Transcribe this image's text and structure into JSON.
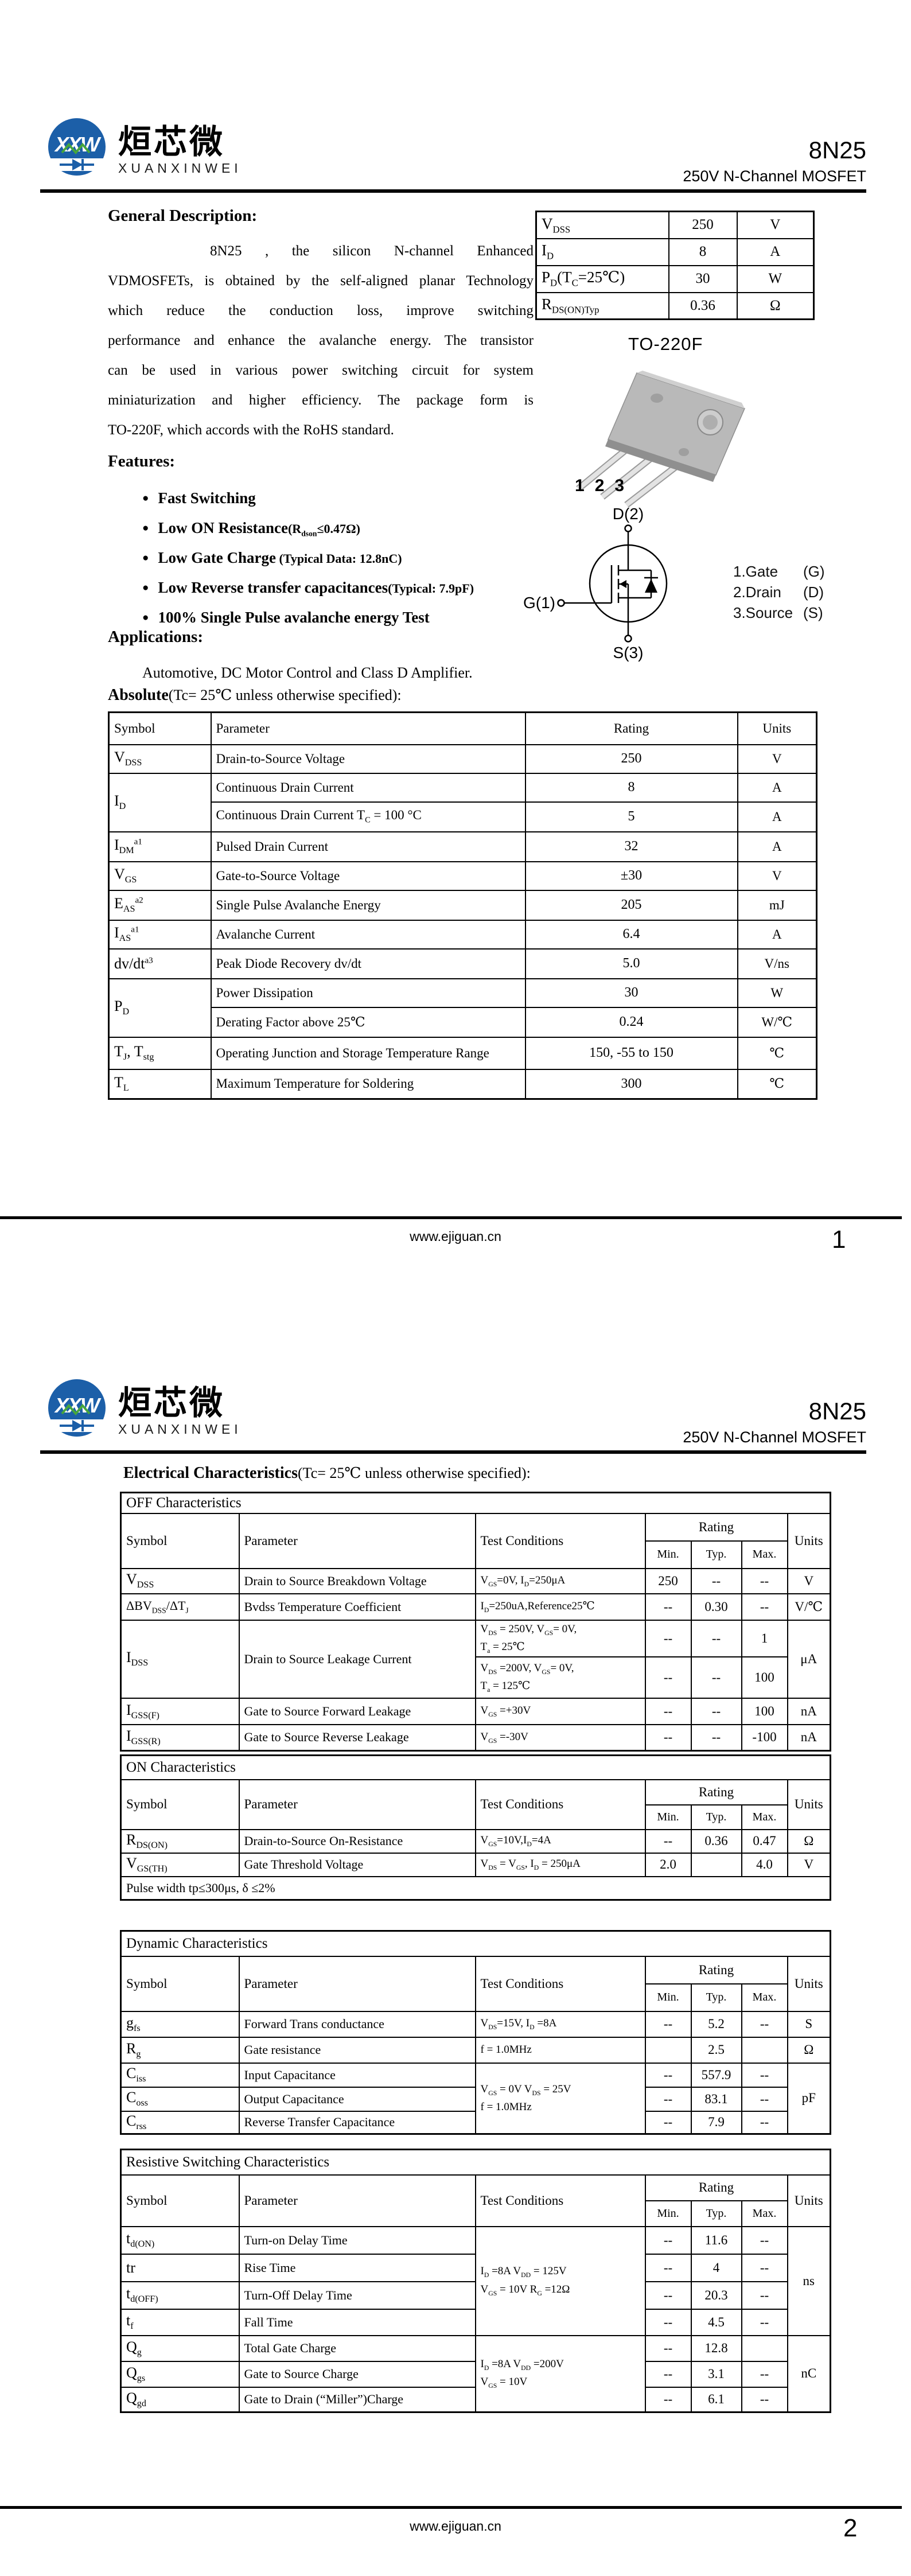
{
  "brand": {
    "monogram": "XXW",
    "name_cn": "烜芯微",
    "name_en": "XUANXINWEI"
  },
  "header": {
    "part_number": "8N25",
    "subtitle": "250V N-Channel MOSFET"
  },
  "footer": {
    "url": "www.ejiguan.cn",
    "page1_number": "1",
    "page2_number": "2"
  },
  "page1": {
    "general": {
      "title": "General Description:",
      "lines": [
        "8N25 , the silicon N-channel Enhanced",
        "VDMOSFETs, is obtained by the self-aligned planar Technology",
        "which reduce the conduction loss, improve switching",
        "performance and enhance the avalanche energy. The transistor",
        "can be used in various power switching circuit for system",
        "miniaturization and higher efficiency. The package form is",
        "TO-220F, which accords with the RoHS standard."
      ]
    },
    "features": {
      "title": "Features:",
      "items": [
        {
          "main": "Fast Switching",
          "note": ""
        },
        {
          "main": "Low ON Resistance",
          "note": "(R~dson~≤0.47Ω)"
        },
        {
          "main": "Low Gate Charge",
          "note": "  (Typical Data: 12.8nC)"
        },
        {
          "main": "Low Reverse transfer capacitances",
          "note": "(Typical: 7.9pF)"
        },
        {
          "main": "100% Single Pulse avalanche energy Test",
          "note": ""
        }
      ]
    },
    "applications": {
      "title": "Applications:",
      "text": "Automotive, DC Motor Control and Class D Amplifier."
    },
    "summary_table": {
      "rows": [
        {
          "symbol": "V~DSS~",
          "value": "250",
          "unit": "V"
        },
        {
          "symbol": "I~D~",
          "value": "8",
          "unit": "A"
        },
        {
          "symbol": "P~D~(T~C~=25℃)",
          "value": "30",
          "unit": "W"
        },
        {
          "symbol": "R~DS(ON)Typ~",
          "value": "0.36",
          "unit": "Ω"
        }
      ]
    },
    "package": {
      "label": "TO-220F",
      "pin_numbers": [
        "1",
        "2",
        "3"
      ],
      "schematic": {
        "drain": "D(2)",
        "gate": "G(1)",
        "source": "S(3)"
      },
      "legend": [
        {
          "pin": "1.Gate",
          "letter": "(G)"
        },
        {
          "pin": "2.Drain",
          "letter": "(D)"
        },
        {
          "pin": "3.Source",
          "letter": "(S)"
        }
      ]
    },
    "absolute": {
      "title_bold": "Absolute",
      "title_rest": "(Tc= 25℃  unless otherwise specified):",
      "headers": [
        "Symbol",
        "Parameter",
        "Rating",
        "Units"
      ],
      "rows": [
        {
          "symbol": "V~DSS~",
          "parameter": "Drain-to-Source Voltage",
          "rating": "250",
          "units": "V"
        },
        {
          "symbol": "I~D~",
          "parameter": "Continuous Drain Current",
          "rating": "8",
          "units": "A"
        },
        {
          "parameter": "Continuous Drain Current T~C~ = 100 °C",
          "rating": "5",
          "units": "A"
        },
        {
          "symbol": "I~DM~^a1^",
          "parameter": "Pulsed Drain Current",
          "rating": "32",
          "units": "A"
        },
        {
          "symbol": "V~GS~",
          "parameter": "Gate-to-Source Voltage",
          "rating": "±30",
          "units": "V"
        },
        {
          "symbol": "E~AS~^a2^",
          "parameter": "Single Pulse Avalanche Energy",
          "rating": "205",
          "units": "mJ"
        },
        {
          "symbol": "I~AS~^a1^",
          "parameter": "Avalanche Current",
          "rating": "6.4",
          "units": "A"
        },
        {
          "symbol": "dv/dt^a3^",
          "parameter": "Peak Diode Recovery dv/dt",
          "rating": "5.0",
          "units": "V/ns"
        },
        {
          "symbol": "P~D~",
          "parameter": "Power Dissipation",
          "rating": "30",
          "units": "W"
        },
        {
          "parameter": "Derating Factor above 25℃",
          "rating": "0.24",
          "units": "W/℃"
        },
        {
          "symbol": "T~J~, T~stg~",
          "parameter": "Operating Junction and Storage Temperature Range",
          "rating": "150, -55 to 150",
          "units": "℃"
        },
        {
          "symbol": "T~L~",
          "parameter": "Maximum Temperature for Soldering",
          "rating": "300",
          "units": "℃"
        }
      ]
    }
  },
  "page2": {
    "electrical_title_bold": "Electrical Characteristics",
    "electrical_title_rest": "(Tc= 25℃  unless otherwise specified):",
    "char_headers": {
      "symbol": "Symbol",
      "parameter": "Parameter",
      "test": "Test Conditions",
      "rating": "Rating",
      "min": "Min.",
      "typ": "Typ.",
      "max": "Max.",
      "units": "Units"
    },
    "off": {
      "title": "OFF Characteristics",
      "rows": [
        {
          "symbol": "V~DSS~",
          "parameter": "Drain to Source Breakdown Voltage",
          "test": "V~GS~=0V, I~D~=250μA",
          "min": "250",
          "typ": "--",
          "max": "--",
          "units": "V"
        },
        {
          "symbol": "ΔBV~DSS~/ΔT~J~",
          "parameter": "Bvdss Temperature Coefficient",
          "test": "I~D~=250uA,Reference25℃",
          "min": "--",
          "typ": "0.30",
          "max": "--",
          "units": "V/℃"
        },
        {
          "symbol": "I~DSS~",
          "parameter": "Drain to Source Leakage Current",
          "test_a": "V~DS~ = 250V, V~GS~= 0V,\nT~a~ = 25℃",
          "min_a": "--",
          "typ_a": "--",
          "max_a": "1",
          "test_b": "V~DS~ =200V, V~GS~= 0V,\nT~a~ = 125℃",
          "min_b": "--",
          "typ_b": "--",
          "max_b": "100",
          "units": "μA"
        },
        {
          "symbol": "I~GSS(F)~",
          "parameter": "Gate to Source Forward Leakage",
          "test": "V~GS~ =+30V",
          "min": "--",
          "typ": "--",
          "max": "100",
          "units": "nA"
        },
        {
          "symbol": "I~GSS(R)~",
          "parameter": "Gate to Source Reverse Leakage",
          "test": "V~GS~ =-30V",
          "min": "--",
          "typ": "--",
          "max": "-100",
          "units": "nA"
        }
      ]
    },
    "on": {
      "title": "ON Characteristics",
      "rows": [
        {
          "symbol": "R~DS(ON)~",
          "parameter": "Drain-to-Source On-Resistance",
          "test": "V~GS~=10V,I~D~=4A",
          "min": "--",
          "typ": "0.36",
          "max": "0.47",
          "units": "Ω"
        },
        {
          "symbol": "V~GS(TH)~",
          "parameter": "Gate Threshold Voltage",
          "test": "V~DS~ = V~GS~, I~D~ = 250μA",
          "min": "2.0",
          "typ": "",
          "max": "4.0",
          "units": "V"
        }
      ],
      "note": "Pulse width tp≤300μs, δ ≤2%"
    },
    "dynamic": {
      "title": "Dynamic Characteristics",
      "shared_test": "V~GS~ = 0V V~DS~ = 25V\nf = 1.0MHz",
      "shared_units": "pF",
      "rows": [
        {
          "symbol": "g~fs~",
          "parameter": "Forward Trans conductance",
          "test": "V~DS~=15V, I~D~ =8A",
          "min": "--",
          "typ": "5.2",
          "max": "--",
          "units": "S"
        },
        {
          "symbol": "R~g~",
          "parameter": "Gate resistance",
          "test": "f = 1.0MHz",
          "min": "",
          "typ": "2.5",
          "max": "",
          "units": "Ω"
        },
        {
          "symbol": "C~iss~",
          "parameter": "Input Capacitance",
          "min": "--",
          "typ": "557.9",
          "max": "--"
        },
        {
          "symbol": "C~oss~",
          "parameter": "Output Capacitance",
          "min": "--",
          "typ": "83.1",
          "max": "--"
        },
        {
          "symbol": "C~rss~",
          "parameter": "Reverse Transfer Capacitance",
          "min": "--",
          "typ": "7.9",
          "max": "--"
        }
      ]
    },
    "resistive": {
      "title": "Resistive Switching Characteristics",
      "shared_test_switching": "I~D~ =8A    V~DD~ = 125V\nV~GS~ = 10V    R~G~ =12Ω",
      "shared_units_switching": "ns",
      "shared_test_charge": "I~D~ =8A   V~DD~ =200V\nV~GS~ = 10V",
      "shared_units_charge": "nC",
      "rows": [
        {
          "symbol": "t~d(ON)~",
          "parameter": "Turn-on Delay Time",
          "min": "--",
          "typ": "11.6",
          "max": "--"
        },
        {
          "symbol": "tr",
          "parameter": "Rise Time",
          "min": "--",
          "typ": "4",
          "max": "--"
        },
        {
          "symbol": "t~d(OFF)~",
          "parameter": "Turn-Off Delay Time",
          "min": "--",
          "typ": "20.3",
          "max": "--"
        },
        {
          "symbol": "t~f~",
          "parameter": "Fall Time",
          "min": "--",
          "typ": "4.5",
          "max": "--"
        },
        {
          "symbol": "Q~g~",
          "parameter": "Total Gate Charge",
          "min": "--",
          "typ": "12.8",
          "max": ""
        },
        {
          "symbol": "Q~gs~",
          "parameter": "Gate to Source Charge",
          "min": "--",
          "typ": "3.1",
          "max": "--"
        },
        {
          "symbol": "Q~gd~",
          "parameter": "Gate to Drain (“Miller”)Charge",
          "min": "--",
          "typ": "6.1",
          "max": "--"
        }
      ]
    }
  }
}
